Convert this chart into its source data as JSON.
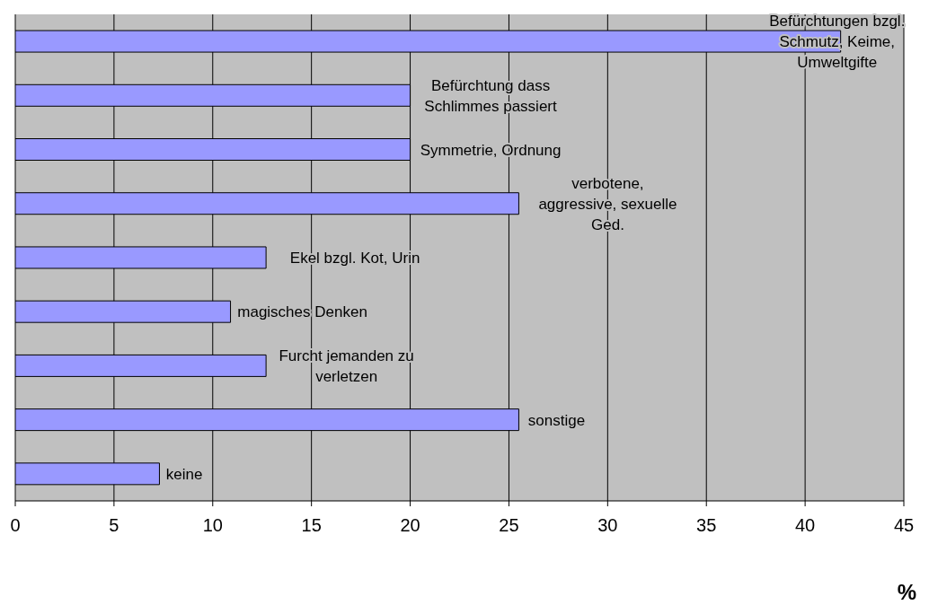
{
  "chart_data": {
    "type": "bar",
    "orientation": "horizontal",
    "xlabel": "%",
    "categories": [
      "Befürchtungen bzgl. Schmutz, Keime, Umweltgifte",
      "Befürchtung dass Schlimmes passiert",
      "Symmetrie, Ordnung",
      "verbotene, aggressive, sexuelle Ged.",
      "Ekel bzgl. Kot, Urin",
      "magisches Denken",
      "Furcht jemanden zu verletzen",
      "sonstige",
      "keine"
    ],
    "values": [
      41.8,
      20,
      20,
      25.5,
      12.7,
      10.9,
      12.7,
      25.5,
      7.3
    ],
    "color": "#9999ff",
    "xlim": [
      0,
      45
    ],
    "xticks": [
      0,
      5,
      10,
      15,
      20,
      25,
      30,
      35,
      40,
      45
    ],
    "grid": "x",
    "tick_labels": "x"
  }
}
